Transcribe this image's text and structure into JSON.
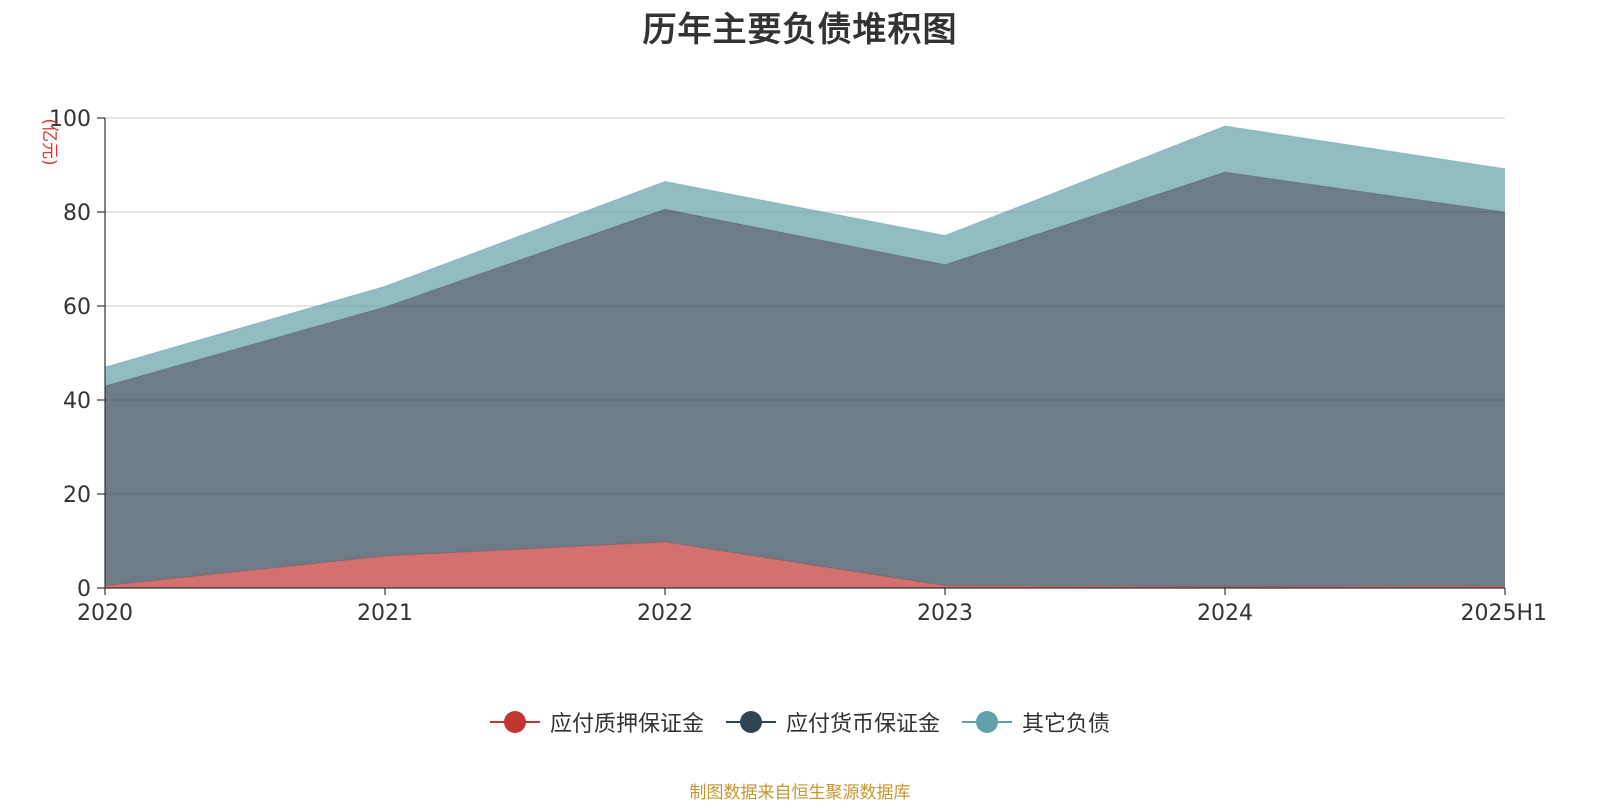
{
  "title": "历年主要负债堆积图",
  "source_note": "制图数据来自恒生聚源数据库",
  "colors": {
    "axis": "#333333",
    "grid": "#cccccc",
    "unit": "#e03030",
    "text": "#333333",
    "source": "#c8962e"
  },
  "chart_data": {
    "type": "area",
    "stacked": true,
    "title": "历年主要负债堆积图",
    "ylabel": "(亿元)",
    "xlabel": "",
    "categories": [
      "2020",
      "2021",
      "2022",
      "2023",
      "2024",
      "2025H1"
    ],
    "ylim": [
      0,
      100
    ],
    "yticks": [
      0,
      20,
      40,
      60,
      80,
      100
    ],
    "grid": true,
    "legend_position": "bottom",
    "series": [
      {
        "name": "应付质押保证金",
        "color": "#c23531",
        "values": [
          0.5,
          6.8,
          9.8,
          0.5,
          0.3,
          0.4
        ]
      },
      {
        "name": "应付货币保证金",
        "color": "#2f4554",
        "values": [
          42.5,
          53.0,
          70.8,
          68.3,
          88.2,
          79.6
        ]
      },
      {
        "name": "其它负债",
        "color": "#61a0a8",
        "values": [
          4.0,
          4.4,
          5.9,
          6.2,
          9.8,
          9.2
        ]
      }
    ]
  }
}
